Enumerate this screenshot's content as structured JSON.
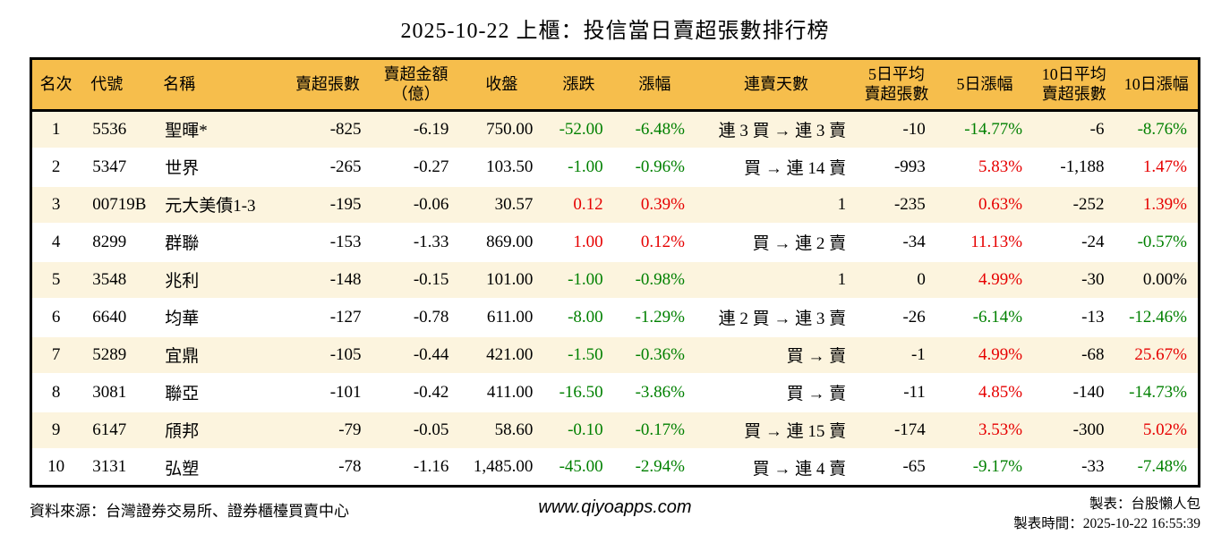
{
  "colors": {
    "header_bg": "#F6BE4C",
    "row_alt_bg": "#FCF4DE",
    "up_red": "#E60000",
    "down_green": "#008000",
    "border": "#000000"
  },
  "chart_data": {
    "type": "table",
    "title": "2025-10-22 上櫃：投信當日賣超張數排行榜",
    "columns": [
      "名次",
      "代號",
      "名稱",
      "賣超張數",
      "賣超金額\n（億）",
      "收盤",
      "漲跌",
      "漲幅",
      "連賣天數",
      "5日平均\n賣超張數",
      "5日漲幅",
      "10日平均\n賣超張數",
      "10日漲幅"
    ],
    "rows": [
      [
        "1",
        "5536",
        "聖暉*",
        "-825",
        "-6.19",
        "750.00",
        "-52.00",
        "-6.48%",
        "連 3 買 → 連 3 賣",
        "-10",
        "-14.77%",
        "-6",
        "-8.76%"
      ],
      [
        "2",
        "5347",
        "世界",
        "-265",
        "-0.27",
        "103.50",
        "-1.00",
        "-0.96%",
        "買 → 連 14 賣",
        "-993",
        "5.83%",
        "-1,188",
        "1.47%"
      ],
      [
        "3",
        "00719B",
        "元大美債1-3",
        "-195",
        "-0.06",
        "30.57",
        "0.12",
        "0.39%",
        "1",
        "-235",
        "0.63%",
        "-252",
        "1.39%"
      ],
      [
        "4",
        "8299",
        "群聯",
        "-153",
        "-1.33",
        "869.00",
        "1.00",
        "0.12%",
        "買 → 連 2 賣",
        "-34",
        "11.13%",
        "-24",
        "-0.57%"
      ],
      [
        "5",
        "3548",
        "兆利",
        "-148",
        "-0.15",
        "101.00",
        "-1.00",
        "-0.98%",
        "1",
        "0",
        "4.99%",
        "-30",
        "0.00%"
      ],
      [
        "6",
        "6640",
        "均華",
        "-127",
        "-0.78",
        "611.00",
        "-8.00",
        "-1.29%",
        "連 2 買 → 連 3 賣",
        "-26",
        "-6.14%",
        "-13",
        "-12.46%"
      ],
      [
        "7",
        "5289",
        "宜鼎",
        "-105",
        "-0.44",
        "421.00",
        "-1.50",
        "-0.36%",
        "買 → 賣",
        "-1",
        "4.99%",
        "-68",
        "25.67%"
      ],
      [
        "8",
        "3081",
        "聯亞",
        "-101",
        "-0.42",
        "411.00",
        "-16.50",
        "-3.86%",
        "買 → 賣",
        "-11",
        "4.85%",
        "-140",
        "-14.73%"
      ],
      [
        "9",
        "6147",
        "頎邦",
        "-79",
        "-0.05",
        "58.60",
        "-0.10",
        "-0.17%",
        "買 → 連 15 賣",
        "-174",
        "3.53%",
        "-300",
        "5.02%"
      ],
      [
        "10",
        "3131",
        "弘塑",
        "-78",
        "-1.16",
        "1,485.00",
        "-45.00",
        "-2.94%",
        "買 → 連 4 賣",
        "-65",
        "-9.17%",
        "-33",
        "-7.48%"
      ]
    ]
  },
  "footer": {
    "source": "資料來源：台灣證券交易所、證券櫃檯買賣中心",
    "website": "www.qiyoapps.com",
    "author": "製表：台股懶人包",
    "generated": "製表時間：2025-10-22 16:55:39"
  }
}
